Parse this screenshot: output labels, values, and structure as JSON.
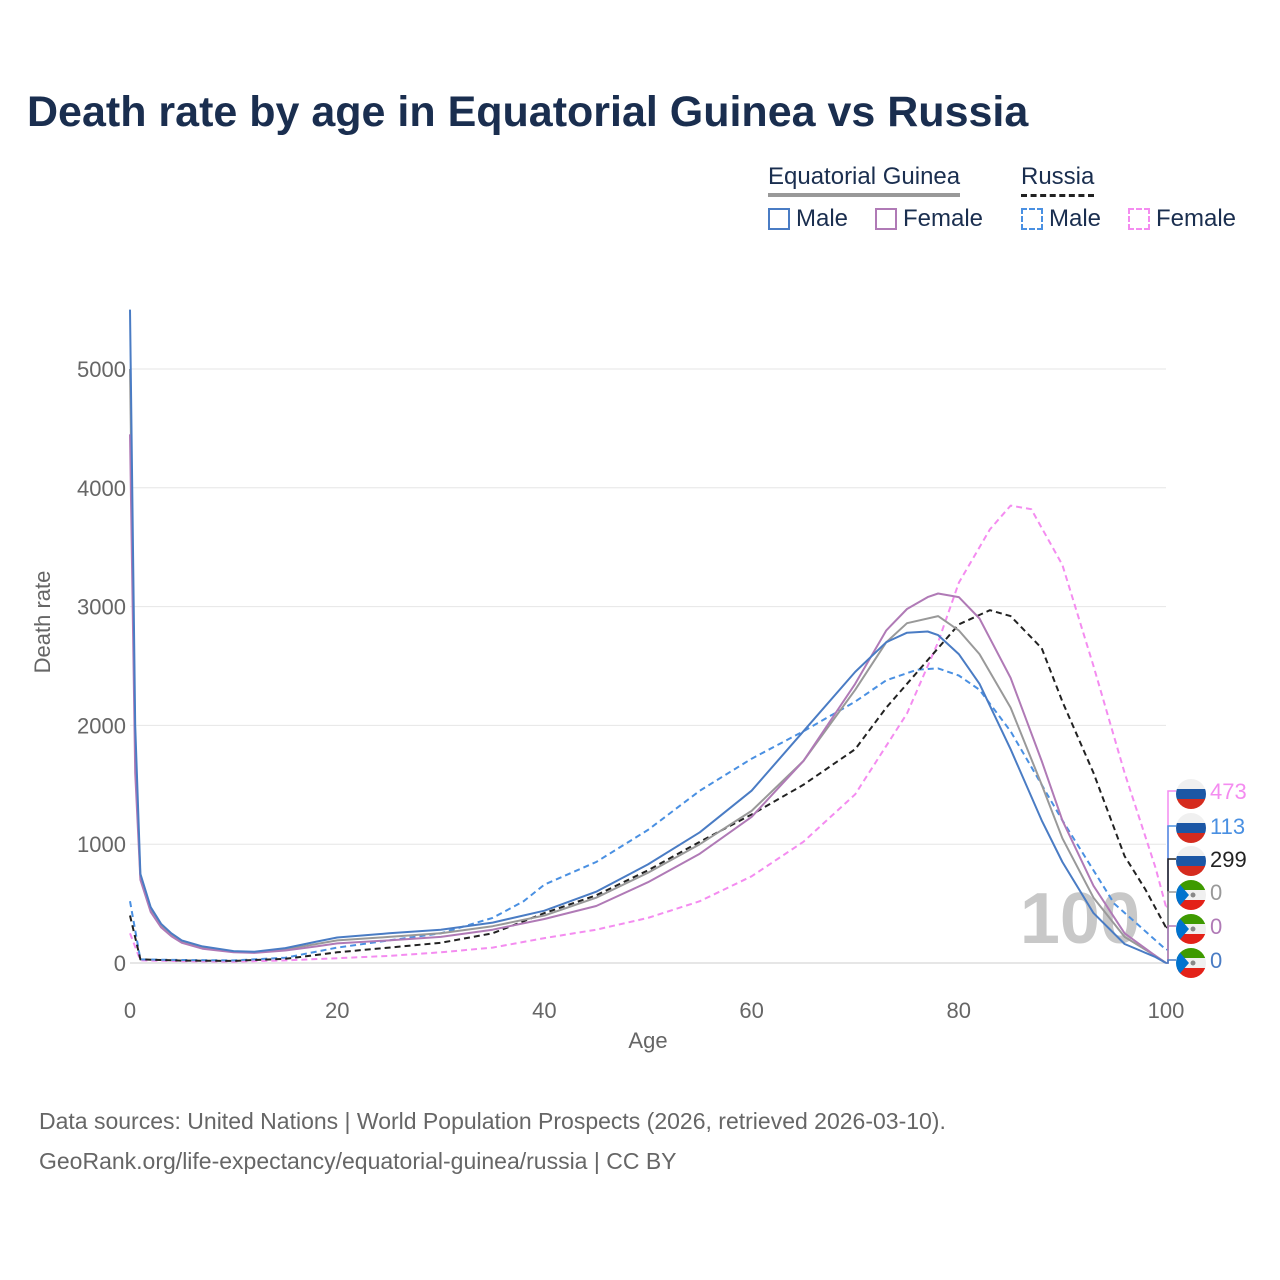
{
  "title": "Death rate by age in Equatorial Guinea vs Russia",
  "legend": {
    "groups": [
      {
        "label": "Equatorial Guinea",
        "line_color": "#999999",
        "dashed": false
      },
      {
        "label": "Russia",
        "line_color": "#222222",
        "dashed": true
      }
    ],
    "items": [
      {
        "label": "Male",
        "color": "#4a7cc4",
        "dashed": false
      },
      {
        "label": "Female",
        "color": "#b07ab6",
        "dashed": false
      },
      {
        "label": "Male",
        "color": "#4a90e2",
        "dashed": true
      },
      {
        "label": "Female",
        "color": "#f48cf0",
        "dashed": true
      }
    ]
  },
  "source_lines": [
    "Data sources: United Nations | World Population Prospects (2026, retrieved 2026-03-10).",
    "GeoRank.org/life-expectancy/equatorial-guinea/russia | CC BY"
  ],
  "chart_data": {
    "type": "line",
    "title": "Death rate by age in Equatorial Guinea vs Russia",
    "xlabel": "Age",
    "ylabel": "Death rate",
    "xlim": [
      0,
      100
    ],
    "ylim": [
      0,
      5500
    ],
    "x_ticks": [
      0,
      20,
      40,
      60,
      80,
      100
    ],
    "y_ticks": [
      0,
      1000,
      2000,
      3000,
      4000,
      5000
    ],
    "grid": true,
    "watermark": "100",
    "series": [
      {
        "name": "Russia Female",
        "country": "Russia",
        "sex": "Female",
        "color": "#f48cf0",
        "dashed": true,
        "points": [
          [
            0,
            250
          ],
          [
            1,
            22
          ],
          [
            5,
            15
          ],
          [
            10,
            12
          ],
          [
            15,
            22
          ],
          [
            20,
            40
          ],
          [
            25,
            60
          ],
          [
            30,
            90
          ],
          [
            35,
            130
          ],
          [
            40,
            210
          ],
          [
            45,
            280
          ],
          [
            50,
            380
          ],
          [
            55,
            520
          ],
          [
            60,
            730
          ],
          [
            65,
            1020
          ],
          [
            70,
            1420
          ],
          [
            75,
            2100
          ],
          [
            78,
            2700
          ],
          [
            80,
            3200
          ],
          [
            83,
            3650
          ],
          [
            85,
            3850
          ],
          [
            87,
            3820
          ],
          [
            90,
            3350
          ],
          [
            93,
            2500
          ],
          [
            96,
            1600
          ],
          [
            99,
            800
          ],
          [
            100,
            473
          ]
        ],
        "end_value": 473,
        "end_label": "473"
      },
      {
        "name": "Russia Male",
        "country": "Russia",
        "sex": "Male",
        "color": "#4a90e2",
        "dashed": true,
        "points": [
          [
            0,
            520
          ],
          [
            1,
            30
          ],
          [
            5,
            25
          ],
          [
            10,
            22
          ],
          [
            15,
            45
          ],
          [
            20,
            130
          ],
          [
            25,
            190
          ],
          [
            30,
            250
          ],
          [
            35,
            380
          ],
          [
            38,
            520
          ],
          [
            40,
            660
          ],
          [
            45,
            850
          ],
          [
            50,
            1120
          ],
          [
            55,
            1450
          ],
          [
            60,
            1720
          ],
          [
            65,
            1950
          ],
          [
            70,
            2200
          ],
          [
            73,
            2380
          ],
          [
            76,
            2470
          ],
          [
            78,
            2480
          ],
          [
            80,
            2420
          ],
          [
            82,
            2300
          ],
          [
            85,
            1950
          ],
          [
            90,
            1200
          ],
          [
            95,
            500
          ],
          [
            100,
            113
          ]
        ],
        "end_value": 113,
        "end_label": "113"
      },
      {
        "name": "Russia Total",
        "country": "Russia",
        "sex": "Total",
        "color": "#222222",
        "dashed": true,
        "points": [
          [
            0,
            400
          ],
          [
            1,
            30
          ],
          [
            5,
            20
          ],
          [
            10,
            18
          ],
          [
            15,
            35
          ],
          [
            20,
            90
          ],
          [
            25,
            130
          ],
          [
            30,
            170
          ],
          [
            35,
            250
          ],
          [
            40,
            420
          ],
          [
            45,
            570
          ],
          [
            50,
            780
          ],
          [
            55,
            1020
          ],
          [
            60,
            1250
          ],
          [
            65,
            1500
          ],
          [
            70,
            1800
          ],
          [
            73,
            2150
          ],
          [
            76,
            2450
          ],
          [
            80,
            2850
          ],
          [
            83,
            2970
          ],
          [
            85,
            2920
          ],
          [
            88,
            2650
          ],
          [
            90,
            2200
          ],
          [
            93,
            1600
          ],
          [
            96,
            900
          ],
          [
            98,
            620
          ],
          [
            100,
            299
          ]
        ],
        "end_value": 299,
        "end_label": "299"
      },
      {
        "name": "Equatorial Guinea Total",
        "country": "Equatorial Guinea",
        "sex": "Total",
        "color": "#999999",
        "dashed": false,
        "points": [
          [
            0,
            5000
          ],
          [
            0.5,
            1800
          ],
          [
            1,
            720
          ],
          [
            2,
            450
          ],
          [
            3,
            320
          ],
          [
            4,
            240
          ],
          [
            5,
            180
          ],
          [
            7,
            130
          ],
          [
            10,
            95
          ],
          [
            12,
            90
          ],
          [
            15,
            115
          ],
          [
            18,
            160
          ],
          [
            20,
            190
          ],
          [
            25,
            220
          ],
          [
            30,
            250
          ],
          [
            35,
            310
          ],
          [
            40,
            400
          ],
          [
            45,
            550
          ],
          [
            50,
            760
          ],
          [
            55,
            1000
          ],
          [
            60,
            1280
          ],
          [
            65,
            1700
          ],
          [
            70,
            2300
          ],
          [
            73,
            2700
          ],
          [
            75,
            2860
          ],
          [
            78,
            2920
          ],
          [
            80,
            2800
          ],
          [
            82,
            2600
          ],
          [
            85,
            2150
          ],
          [
            88,
            1500
          ],
          [
            90,
            1050
          ],
          [
            93,
            550
          ],
          [
            96,
            220
          ],
          [
            99,
            60
          ],
          [
            100,
            0
          ]
        ],
        "end_value": 0,
        "end_label": "0"
      },
      {
        "name": "Equatorial Guinea Female",
        "country": "Equatorial Guinea",
        "sex": "Female",
        "color": "#b07ab6",
        "dashed": false,
        "points": [
          [
            0,
            4450
          ],
          [
            0.5,
            1600
          ],
          [
            1,
            700
          ],
          [
            2,
            430
          ],
          [
            3,
            300
          ],
          [
            4,
            225
          ],
          [
            5,
            170
          ],
          [
            7,
            120
          ],
          [
            10,
            90
          ],
          [
            12,
            85
          ],
          [
            15,
            105
          ],
          [
            18,
            140
          ],
          [
            20,
            165
          ],
          [
            25,
            190
          ],
          [
            30,
            220
          ],
          [
            35,
            280
          ],
          [
            40,
            370
          ],
          [
            45,
            480
          ],
          [
            50,
            680
          ],
          [
            55,
            920
          ],
          [
            60,
            1230
          ],
          [
            65,
            1700
          ],
          [
            70,
            2350
          ],
          [
            73,
            2800
          ],
          [
            75,
            2980
          ],
          [
            77,
            3080
          ],
          [
            78,
            3110
          ],
          [
            80,
            3080
          ],
          [
            82,
            2900
          ],
          [
            85,
            2400
          ],
          [
            88,
            1700
          ],
          [
            90,
            1200
          ],
          [
            93,
            650
          ],
          [
            96,
            250
          ],
          [
            99,
            60
          ],
          [
            100,
            0
          ]
        ],
        "end_value": 0,
        "end_label": "0"
      },
      {
        "name": "Equatorial Guinea Male",
        "country": "Equatorial Guinea",
        "sex": "Male",
        "color": "#4a7cc4",
        "dashed": false,
        "points": [
          [
            0,
            5500
          ],
          [
            0.5,
            2000
          ],
          [
            1,
            750
          ],
          [
            2,
            470
          ],
          [
            3,
            330
          ],
          [
            4,
            250
          ],
          [
            5,
            190
          ],
          [
            7,
            140
          ],
          [
            10,
            100
          ],
          [
            12,
            95
          ],
          [
            15,
            125
          ],
          [
            18,
            180
          ],
          [
            20,
            215
          ],
          [
            25,
            250
          ],
          [
            30,
            280
          ],
          [
            35,
            340
          ],
          [
            40,
            440
          ],
          [
            45,
            600
          ],
          [
            50,
            830
          ],
          [
            55,
            1100
          ],
          [
            60,
            1450
          ],
          [
            65,
            1950
          ],
          [
            70,
            2450
          ],
          [
            73,
            2700
          ],
          [
            75,
            2780
          ],
          [
            77,
            2790
          ],
          [
            78,
            2760
          ],
          [
            80,
            2600
          ],
          [
            82,
            2350
          ],
          [
            85,
            1800
          ],
          [
            88,
            1200
          ],
          [
            90,
            850
          ],
          [
            93,
            420
          ],
          [
            96,
            160
          ],
          [
            99,
            50
          ],
          [
            100,
            0
          ]
        ],
        "end_value": 0,
        "end_label": "0"
      }
    ]
  }
}
